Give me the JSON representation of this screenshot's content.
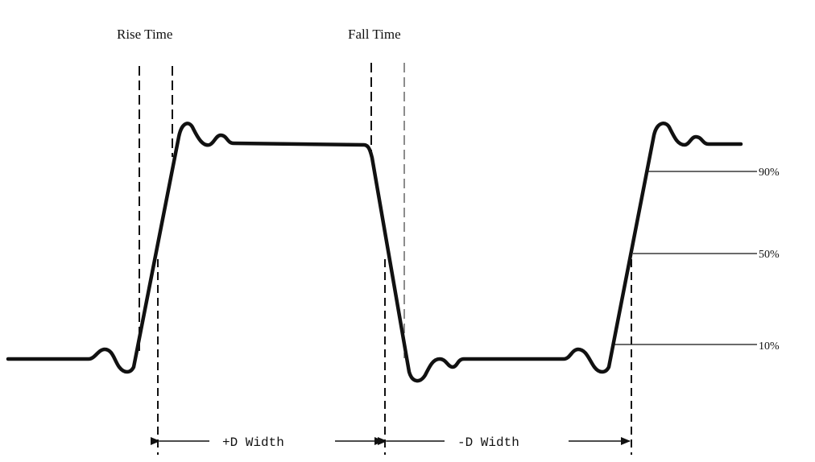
{
  "labels": {
    "rise_time": "Rise Time",
    "fall_time": "Fall Time",
    "pct_90": "90%",
    "pct_50": "50%",
    "pct_10": "10%",
    "pos_width": "+D Width",
    "neg_width": "-D Width"
  },
  "colors": {
    "ink": "#111111",
    "background": "#ffffff"
  }
}
